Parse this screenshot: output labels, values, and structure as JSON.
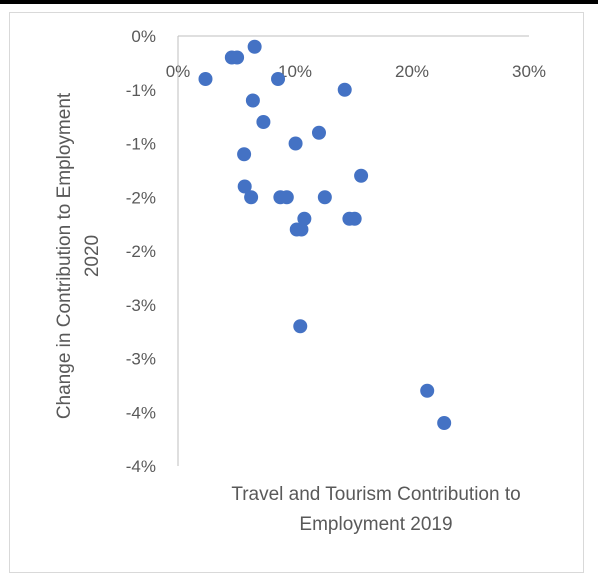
{
  "chart_data": {
    "type": "scatter",
    "xlabel": [
      "Travel and Tourism Contribution to",
      "Employment 2019"
    ],
    "ylabel": [
      "Change in Contribution to Employment",
      "2020"
    ],
    "x_ticks": [
      "0%",
      "10%",
      "20%",
      "30%"
    ],
    "x_tick_values": [
      0,
      0.1,
      0.2,
      0.3
    ],
    "y_ticks": [
      "0%",
      "-1%",
      "-1%",
      "-2%",
      "-2%",
      "-3%",
      "-3%",
      "-4%",
      "-4%"
    ],
    "y_tick_values": [
      0,
      -0.005,
      -0.01,
      -0.015,
      -0.02,
      -0.025,
      -0.03,
      -0.035,
      -0.04
    ],
    "xlim": [
      0,
      0.3
    ],
    "ylim": [
      -0.04,
      0
    ],
    "grid": false,
    "marker_color": "#4472c4",
    "points": [
      {
        "x": 0.0235,
        "y": -0.004
      },
      {
        "x": 0.046,
        "y": -0.002
      },
      {
        "x": 0.0505,
        "y": -0.002
      },
      {
        "x": 0.0655,
        "y": -0.001
      },
      {
        "x": 0.0855,
        "y": -0.004
      },
      {
        "x": 0.1425,
        "y": -0.005
      },
      {
        "x": 0.064,
        "y": -0.006
      },
      {
        "x": 0.073,
        "y": -0.008
      },
      {
        "x": 0.1205,
        "y": -0.009
      },
      {
        "x": 0.1005,
        "y": -0.01
      },
      {
        "x": 0.0565,
        "y": -0.011
      },
      {
        "x": 0.1565,
        "y": -0.013
      },
      {
        "x": 0.057,
        "y": -0.014
      },
      {
        "x": 0.0625,
        "y": -0.015
      },
      {
        "x": 0.0875,
        "y": -0.015
      },
      {
        "x": 0.093,
        "y": -0.015
      },
      {
        "x": 0.1255,
        "y": -0.015
      },
      {
        "x": 0.108,
        "y": -0.017
      },
      {
        "x": 0.1465,
        "y": -0.017
      },
      {
        "x": 0.151,
        "y": -0.017
      },
      {
        "x": 0.1015,
        "y": -0.018
      },
      {
        "x": 0.1055,
        "y": -0.018
      },
      {
        "x": 0.1045,
        "y": -0.027
      },
      {
        "x": 0.213,
        "y": -0.033
      },
      {
        "x": 0.2275,
        "y": -0.036
      }
    ]
  }
}
